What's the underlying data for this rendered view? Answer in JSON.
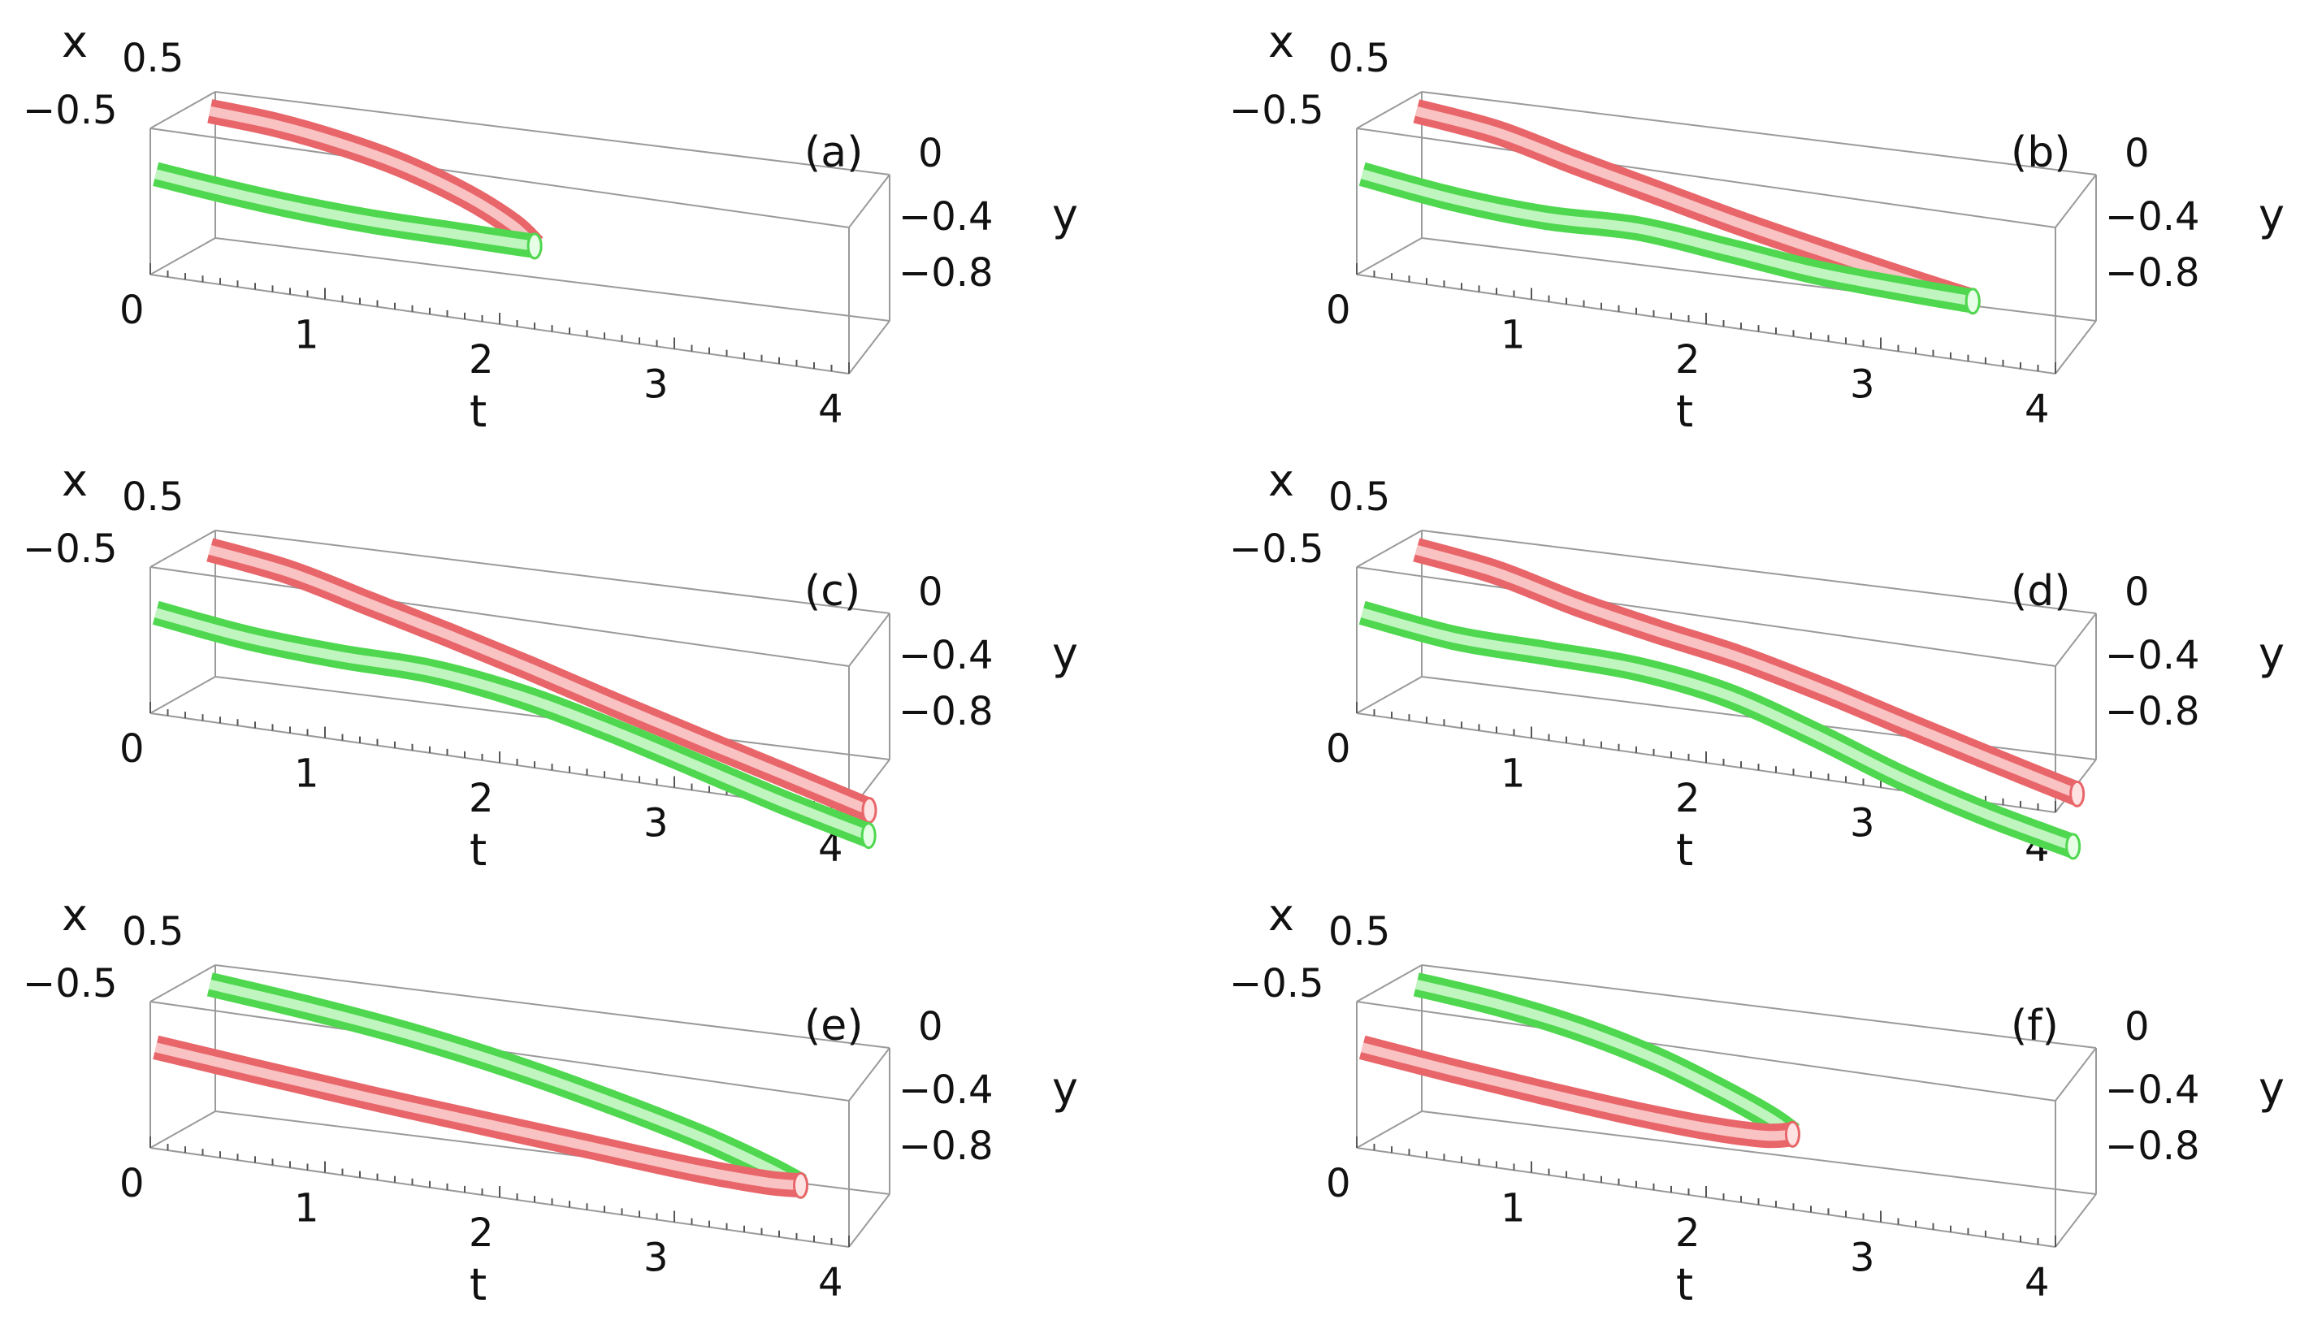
{
  "colors": {
    "red_tube": "#e8666a",
    "red_highlight": "#ffe2e2",
    "green_tube": "#4fd84f",
    "green_highlight": "#e6ffe6",
    "box": "#9a9a9a"
  },
  "chart_data": [
    {
      "type": "line3d",
      "panel_label": "(a)",
      "xlabel": "x",
      "ylabel": "y",
      "tlabel": "t",
      "x_ticks": [
        "0.5",
        "−0.5"
      ],
      "y_ticks": [
        "0",
        "−0.4",
        "−0.8"
      ],
      "t_ticks": [
        "0",
        "1",
        "2",
        "3",
        "4"
      ],
      "t_range": [
        0,
        4
      ],
      "x_range": [
        -0.6,
        0.6
      ],
      "y_range": [
        -0.8,
        0.1
      ],
      "series": [
        {
          "name": "red",
          "t": [
            0,
            0.4,
            0.8,
            1.2,
            1.6,
            1.9,
            2.05
          ],
          "x": [
            0.5,
            0.48,
            0.42,
            0.33,
            0.2,
            0.08,
            0.0
          ],
          "y": [
            0,
            -0.03,
            -0.08,
            -0.15,
            -0.25,
            -0.36,
            -0.45
          ]
        },
        {
          "name": "green",
          "t": [
            0,
            0.4,
            0.8,
            1.2,
            1.6,
            1.9,
            2.05
          ],
          "x": [
            -0.5,
            -0.45,
            -0.36,
            -0.25,
            -0.12,
            -0.03,
            0.0
          ],
          "y": [
            -0.2,
            -0.26,
            -0.32,
            -0.37,
            -0.41,
            -0.44,
            -0.45
          ]
        }
      ]
    },
    {
      "type": "line3d",
      "panel_label": "(b)",
      "xlabel": "x",
      "ylabel": "y",
      "tlabel": "t",
      "x_ticks": [
        "0.5",
        "−0.5"
      ],
      "y_ticks": [
        "0",
        "−0.4",
        "−0.8"
      ],
      "t_ticks": [
        "0",
        "1",
        "2",
        "3",
        "4"
      ],
      "t_range": [
        0,
        4
      ],
      "x_range": [
        -0.6,
        0.6
      ],
      "y_range": [
        -0.8,
        0.1
      ],
      "series": [
        {
          "name": "red",
          "t": [
            0,
            0.5,
            1.0,
            1.5,
            2.0,
            2.5,
            3.0,
            3.4
          ],
          "x": [
            0.5,
            0.42,
            0.28,
            0.14,
            0.06,
            0.02,
            0.0,
            0.0
          ],
          "y": [
            0,
            -0.05,
            -0.14,
            -0.22,
            -0.32,
            -0.42,
            -0.52,
            -0.6
          ]
        },
        {
          "name": "green",
          "t": [
            0,
            0.5,
            1.0,
            1.5,
            2.0,
            2.5,
            3.0,
            3.4
          ],
          "x": [
            -0.5,
            -0.4,
            -0.3,
            -0.18,
            -0.1,
            -0.04,
            -0.01,
            0.0
          ],
          "y": [
            -0.2,
            -0.3,
            -0.36,
            -0.38,
            -0.46,
            -0.54,
            -0.58,
            -0.6
          ]
        }
      ]
    },
    {
      "type": "line3d",
      "panel_label": "(c)",
      "xlabel": "x",
      "ylabel": "y",
      "tlabel": "t",
      "x_ticks": [
        "0.5",
        "−0.5"
      ],
      "y_ticks": [
        "0",
        "−0.4",
        "−0.8"
      ],
      "t_ticks": [
        "0",
        "1",
        "2",
        "3",
        "4"
      ],
      "t_range": [
        0,
        4
      ],
      "x_range": [
        -0.6,
        0.6
      ],
      "y_range": [
        -0.8,
        0.1
      ],
      "series": [
        {
          "name": "red",
          "t": [
            0,
            0.5,
            1.0,
            1.5,
            2.0,
            2.5,
            3.0,
            3.5,
            4.0
          ],
          "x": [
            0.5,
            0.42,
            0.3,
            0.18,
            0.1,
            0.05,
            0.02,
            0.0,
            0.0
          ],
          "y": [
            0,
            -0.06,
            -0.16,
            -0.26,
            -0.38,
            -0.52,
            -0.66,
            -0.8,
            -0.95
          ]
        },
        {
          "name": "green",
          "t": [
            0,
            0.5,
            1.0,
            1.5,
            2.0,
            2.5,
            3.0,
            3.5,
            4.0
          ],
          "x": [
            -0.5,
            -0.4,
            -0.3,
            -0.2,
            -0.12,
            -0.08,
            -0.05,
            -0.03,
            -0.02
          ],
          "y": [
            -0.2,
            -0.3,
            -0.36,
            -0.4,
            -0.5,
            -0.64,
            -0.8,
            -0.96,
            -1.1
          ]
        }
      ]
    },
    {
      "type": "line3d",
      "panel_label": "(d)",
      "xlabel": "x",
      "ylabel": "y",
      "tlabel": "t",
      "x_ticks": [
        "0.5",
        "−0.5"
      ],
      "y_ticks": [
        "0",
        "−0.4",
        "−0.8"
      ],
      "t_ticks": [
        "0",
        "1",
        "2",
        "3",
        "4"
      ],
      "t_range": [
        0,
        4
      ],
      "x_range": [
        -0.6,
        0.6
      ],
      "y_range": [
        -0.8,
        0.1
      ],
      "series": [
        {
          "name": "red",
          "t": [
            0,
            0.5,
            1.0,
            1.5,
            2.0,
            2.5,
            3.0,
            3.5,
            4.0
          ],
          "x": [
            0.5,
            0.42,
            0.3,
            0.2,
            0.14,
            0.1,
            0.07,
            0.05,
            0.04
          ],
          "y": [
            0,
            -0.06,
            -0.16,
            -0.24,
            -0.32,
            -0.44,
            -0.58,
            -0.72,
            -0.86
          ]
        },
        {
          "name": "green",
          "t": [
            0,
            0.5,
            1.0,
            1.5,
            2.0,
            2.5,
            3.0,
            3.5,
            4.0
          ],
          "x": [
            -0.5,
            -0.4,
            -0.3,
            -0.22,
            -0.16,
            -0.12,
            -0.1,
            -0.09,
            -0.08
          ],
          "y": [
            -0.2,
            -0.3,
            -0.34,
            -0.38,
            -0.48,
            -0.66,
            -0.86,
            -1.02,
            -1.15
          ]
        }
      ]
    },
    {
      "type": "line3d",
      "panel_label": "(e)",
      "xlabel": "x",
      "ylabel": "y",
      "tlabel": "t",
      "x_ticks": [
        "0.5",
        "−0.5"
      ],
      "y_ticks": [
        "0",
        "−0.4",
        "−0.8"
      ],
      "t_ticks": [
        "0",
        "1",
        "2",
        "3",
        "4"
      ],
      "t_range": [
        0,
        4
      ],
      "x_range": [
        -0.6,
        0.6
      ],
      "y_range": [
        -0.8,
        0.1
      ],
      "series": [
        {
          "name": "green",
          "t": [
            0,
            0.6,
            1.2,
            1.8,
            2.4,
            3.0,
            3.4,
            3.6
          ],
          "x": [
            0.5,
            0.46,
            0.4,
            0.32,
            0.22,
            0.12,
            0.04,
            0.0
          ],
          "y": [
            0,
            -0.06,
            -0.13,
            -0.22,
            -0.33,
            -0.46,
            -0.57,
            -0.64
          ]
        },
        {
          "name": "red",
          "t": [
            0,
            0.6,
            1.2,
            1.8,
            2.4,
            3.0,
            3.4,
            3.6
          ],
          "x": [
            -0.5,
            -0.44,
            -0.37,
            -0.28,
            -0.19,
            -0.1,
            -0.03,
            0.0
          ],
          "y": [
            -0.2,
            -0.28,
            -0.36,
            -0.44,
            -0.52,
            -0.6,
            -0.64,
            -0.64
          ]
        }
      ]
    },
    {
      "type": "line3d",
      "panel_label": "(f)",
      "xlabel": "x",
      "ylabel": "y",
      "tlabel": "t",
      "x_ticks": [
        "0.5",
        "−0.5"
      ],
      "y_ticks": [
        "0",
        "−0.4",
        "−0.8"
      ],
      "t_ticks": [
        "0",
        "1",
        "2",
        "3",
        "4"
      ],
      "t_range": [
        0,
        4
      ],
      "x_range": [
        -0.6,
        0.6
      ],
      "y_range": [
        -0.8,
        0.1
      ],
      "series": [
        {
          "name": "green",
          "t": [
            0,
            0.5,
            1.0,
            1.5,
            1.9,
            2.2,
            2.35
          ],
          "x": [
            0.5,
            0.46,
            0.38,
            0.26,
            0.14,
            0.05,
            0.0
          ],
          "y": [
            0,
            -0.05,
            -0.12,
            -0.22,
            -0.33,
            -0.43,
            -0.5
          ]
        },
        {
          "name": "red",
          "t": [
            0,
            0.5,
            1.0,
            1.5,
            1.9,
            2.2,
            2.35
          ],
          "x": [
            -0.5,
            -0.44,
            -0.35,
            -0.24,
            -0.12,
            -0.04,
            0.0
          ],
          "y": [
            -0.2,
            -0.28,
            -0.36,
            -0.44,
            -0.5,
            -0.52,
            -0.5
          ]
        }
      ]
    }
  ]
}
